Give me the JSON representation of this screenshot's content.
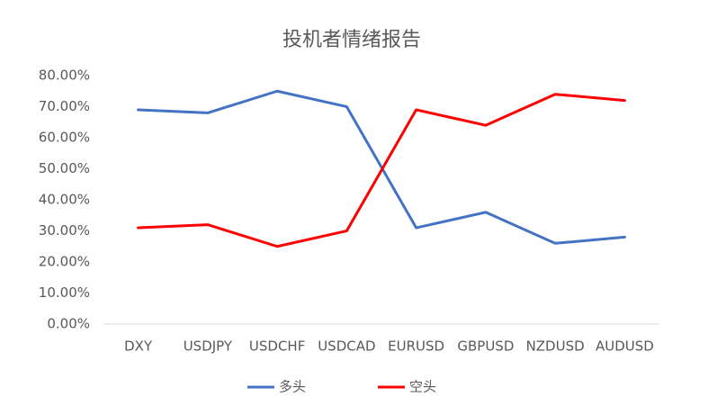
{
  "chart_data": {
    "type": "line",
    "title": "投机者情绪报告",
    "categories": [
      "DXY",
      "USDJPY",
      "USDCHF",
      "USDCAD",
      "EURUSD",
      "GBPUSD",
      "NZDUSD",
      "AUDUSD"
    ],
    "series": [
      {
        "name": "多头",
        "color": "#4472c4",
        "values": [
          69,
          68,
          75,
          70,
          31,
          36,
          26,
          28
        ]
      },
      {
        "name": "空头",
        "color": "#ff0000",
        "values": [
          31,
          32,
          25,
          30,
          69,
          64,
          74,
          72
        ]
      }
    ],
    "ylim": [
      0,
      80
    ],
    "yticks": [
      {
        "value": 0,
        "label": "0.00%"
      },
      {
        "value": 10,
        "label": "10.00%"
      },
      {
        "value": 20,
        "label": "20.00%"
      },
      {
        "value": 30,
        "label": "30.00%"
      },
      {
        "value": 40,
        "label": "40.00%"
      },
      {
        "value": 50,
        "label": "50.00%"
      },
      {
        "value": 60,
        "label": "60.00%"
      },
      {
        "value": 70,
        "label": "70.00%"
      },
      {
        "value": 80,
        "label": "80.00%"
      }
    ],
    "grid": false,
    "legend": "bottom"
  }
}
